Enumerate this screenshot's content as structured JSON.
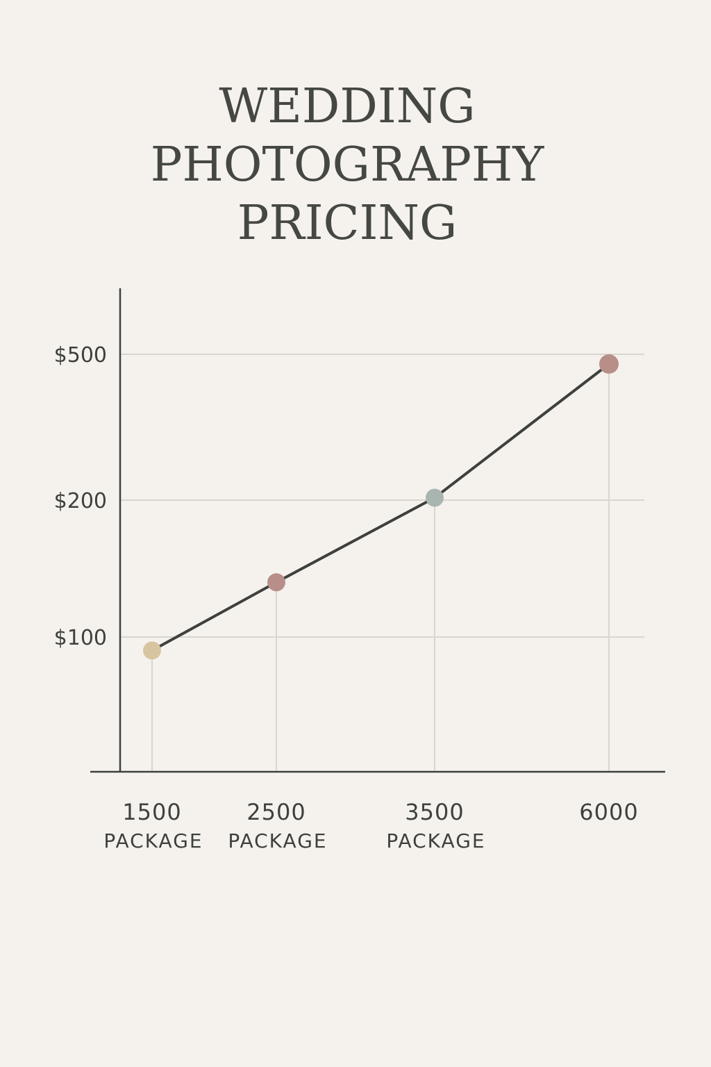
{
  "chart_data": {
    "type": "line",
    "title_lines": [
      "WEDDING",
      "PHOTOGRAPHY",
      "PRICING"
    ],
    "categories": [
      {
        "value": "1500",
        "label": "PACKAGE"
      },
      {
        "value": "2500",
        "label": "PACKAGE"
      },
      {
        "value": "3500",
        "label": "PACKAGE"
      },
      {
        "value": "6000",
        "label": ""
      }
    ],
    "y_ticks": [
      {
        "label": "$500",
        "value": 500
      },
      {
        "label": "$200",
        "value": 200
      },
      {
        "label": "$100",
        "value": 100
      }
    ],
    "y_scale": "nonlinear (ticks $100, $200, $500 unevenly spaced)",
    "values": [
      90,
      140,
      205,
      480
    ],
    "point_colors": [
      "#d8c49e",
      "#b88e88",
      "#a9b5b0",
      "#b88e88"
    ],
    "line_color": "#3e403c",
    "grid": true,
    "legend": "none",
    "xlabel": "",
    "ylabel": ""
  }
}
